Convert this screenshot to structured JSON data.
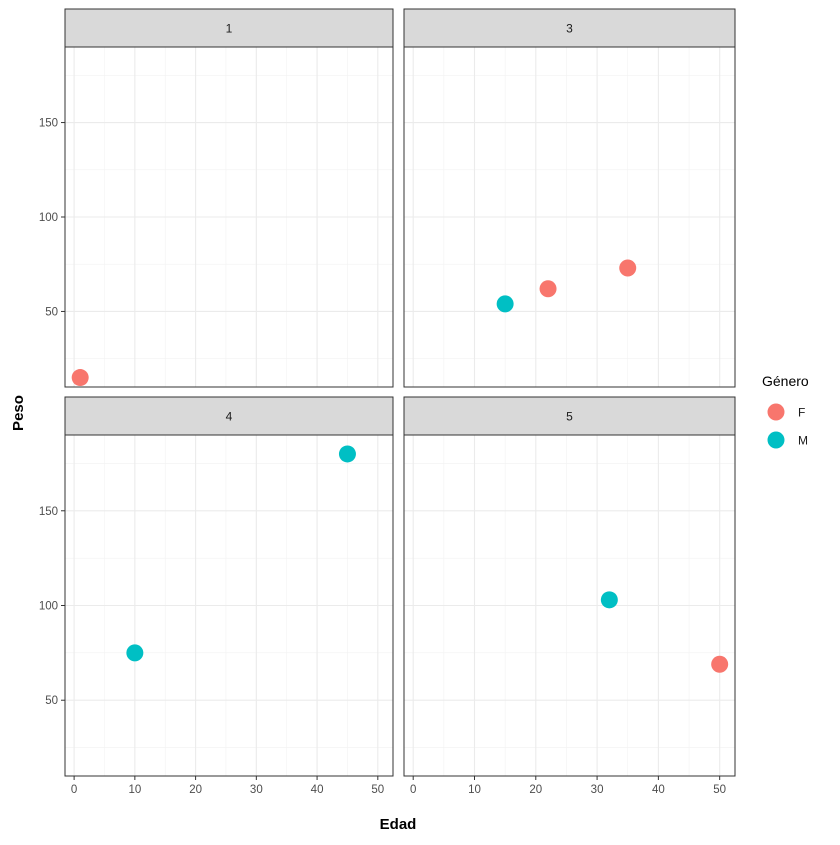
{
  "chart_data": {
    "type": "scatter",
    "facet_by": "grupo",
    "layout": "2x2 facet grid",
    "xlabel": "Edad",
    "ylabel": "Peso",
    "xlim": [
      -1.5,
      52.5
    ],
    "ylim": [
      10,
      190
    ],
    "x_ticks": [
      0,
      10,
      20,
      30,
      40,
      50
    ],
    "y_ticks": [
      50,
      100,
      150
    ],
    "grid": true,
    "legend": {
      "title": "Género",
      "position": "right",
      "entries": [
        {
          "label": "F",
          "color": "#F8766D"
        },
        {
          "label": "M",
          "color": "#00BFC4"
        }
      ]
    },
    "facets": [
      {
        "label": "1",
        "points": [
          {
            "x": 1,
            "y": 15,
            "genero": "F"
          }
        ]
      },
      {
        "label": "3",
        "points": [
          {
            "x": 15,
            "y": 54,
            "genero": "M"
          },
          {
            "x": 22,
            "y": 62,
            "genero": "F"
          },
          {
            "x": 35,
            "y": 73,
            "genero": "F"
          }
        ]
      },
      {
        "label": "4",
        "points": [
          {
            "x": 10,
            "y": 75,
            "genero": "M"
          },
          {
            "x": 45,
            "y": 180,
            "genero": "M"
          }
        ]
      },
      {
        "label": "5",
        "points": [
          {
            "x": 32,
            "y": 103,
            "genero": "M"
          },
          {
            "x": 50,
            "y": 69,
            "genero": "F"
          }
        ]
      }
    ],
    "colors": {
      "F": "#F8766D",
      "M": "#00BFC4"
    }
  }
}
